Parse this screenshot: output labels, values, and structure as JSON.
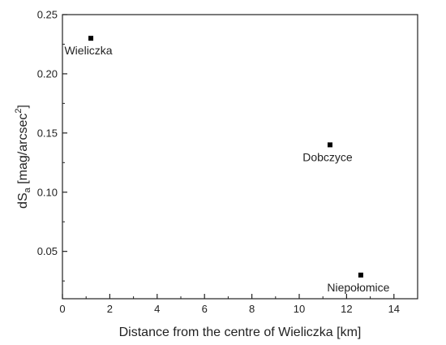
{
  "chart_data": {
    "type": "scatter",
    "title": "",
    "xlabel": "Distance from the centre of Wieliczka [km]",
    "ylabel": {
      "base": "dS",
      "base_sub": "a",
      "unit_open": " [mag/arcsec",
      "unit_sup": "2",
      "unit_close": "]"
    },
    "xlim": [
      0,
      15
    ],
    "ylim": [
      0.01,
      0.25
    ],
    "xticks": [
      0,
      2,
      4,
      6,
      8,
      10,
      12,
      14
    ],
    "yticks": [
      0.05,
      0.1,
      0.15,
      0.2,
      0.25
    ],
    "ytick_labels": [
      "0.05",
      "0.10",
      "0.15",
      "0.20",
      "0.25"
    ],
    "grid": false,
    "legend": "none",
    "marker": "square",
    "marker_color": "#000000",
    "points": [
      {
        "label": "Wieliczka",
        "x": 1.2,
        "y": 0.23,
        "label_position": "below"
      },
      {
        "label": "Dobczyce",
        "x": 11.3,
        "y": 0.14,
        "label_position": "below"
      },
      {
        "label": "Niepołomice",
        "x": 12.6,
        "y": 0.03,
        "label_position": "below"
      }
    ]
  }
}
